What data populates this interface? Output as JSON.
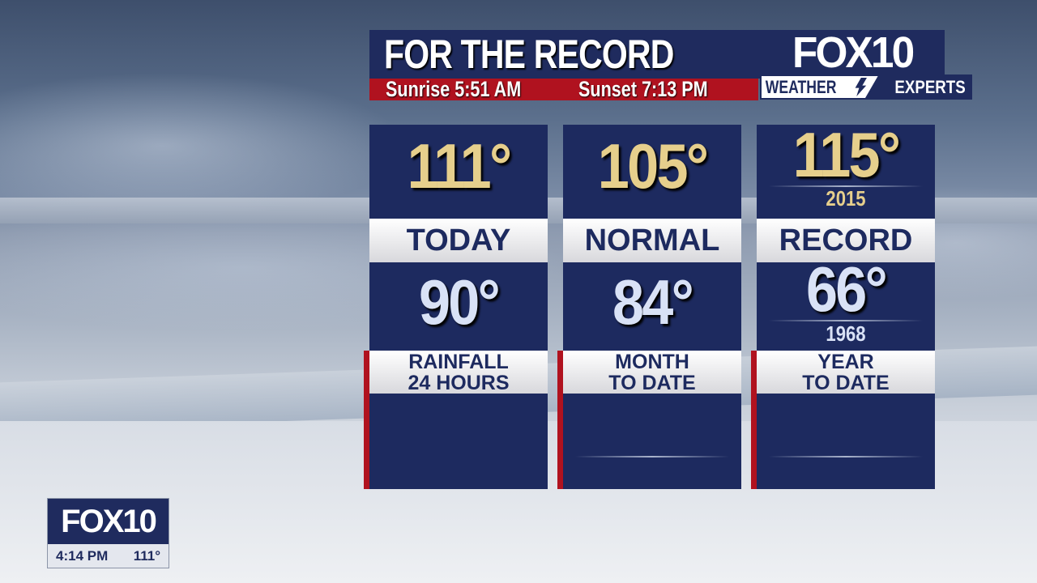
{
  "header": {
    "title": "FOR THE RECORD",
    "sunrise": "Sunrise 5:51 AM",
    "sunset": "Sunset 7:13 PM"
  },
  "brand": {
    "logo": "FOX10",
    "weather": "WEATHER",
    "experts": "EXPERTS"
  },
  "columns": [
    {
      "high": "111°",
      "label": "TODAY",
      "low": "90°",
      "rain_label_1": "RAINFALL",
      "rain_label_2": "24 HOURS"
    },
    {
      "high": "105°",
      "label": "NORMAL",
      "low": "84°",
      "rain_label_1": "MONTH",
      "rain_label_2": "TO DATE"
    },
    {
      "high": "115°",
      "high_year": "2015",
      "label": "RECORD",
      "low": "66°",
      "low_year": "1968",
      "rain_label_1": "YEAR",
      "rain_label_2": "TO DATE"
    }
  ],
  "bug": {
    "logo": "FOX10",
    "time": "4:14 PM",
    "temp": "111°"
  },
  "colors": {
    "navy": "#1f2b5e",
    "red": "#b0121f",
    "gold": "#e6cf8c"
  }
}
